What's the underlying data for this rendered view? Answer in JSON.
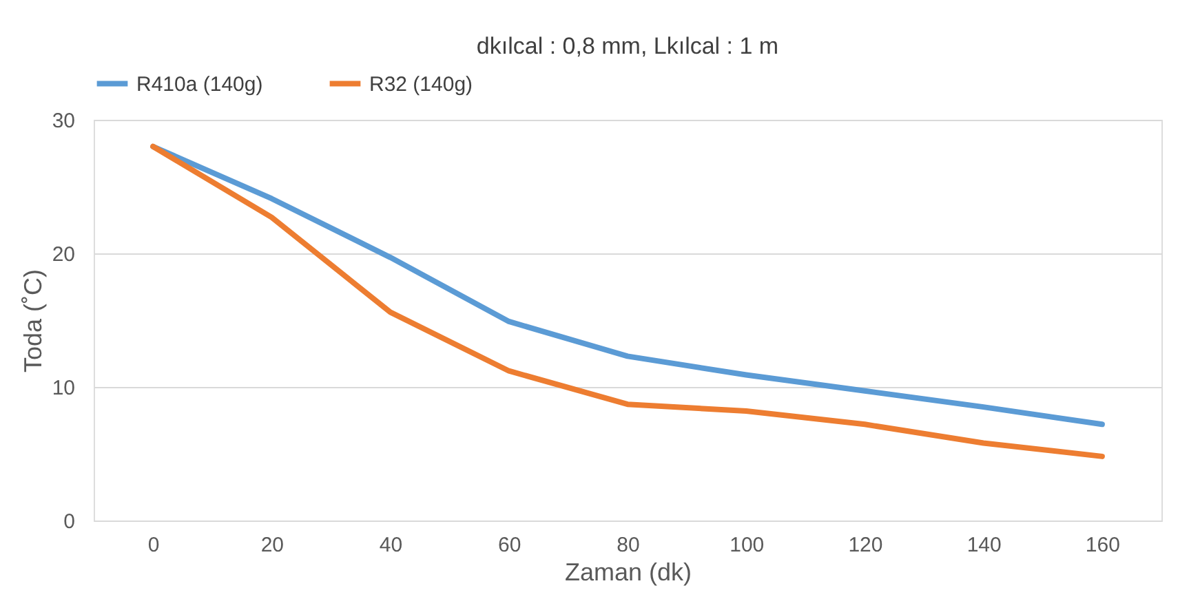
{
  "chart_data": {
    "type": "line",
    "title": "dkılcal : 0,8 mm, Lkılcal : 1 m",
    "xlabel": "Zaman (dk)",
    "ylabel": "Toda (˚C)",
    "categories": [
      "0",
      "20",
      "40",
      "60",
      "80",
      "100",
      "120",
      "140",
      "160"
    ],
    "series": [
      {
        "name": "R410a (140g)",
        "color": "#5b9bd5",
        "values": [
          28.0,
          24.1,
          19.7,
          14.9,
          12.3,
          10.9,
          9.7,
          8.5,
          7.2
        ]
      },
      {
        "name": "R32 (140g)",
        "color": "#ed7d31",
        "values": [
          28.0,
          22.7,
          15.6,
          11.2,
          8.7,
          8.2,
          7.2,
          5.8,
          4.8
        ]
      }
    ],
    "ylim": [
      0,
      30
    ],
    "yticks": [
      0,
      10,
      20,
      30
    ],
    "grid": "y",
    "legend": "top",
    "marker": "none",
    "line_style": "solid"
  }
}
